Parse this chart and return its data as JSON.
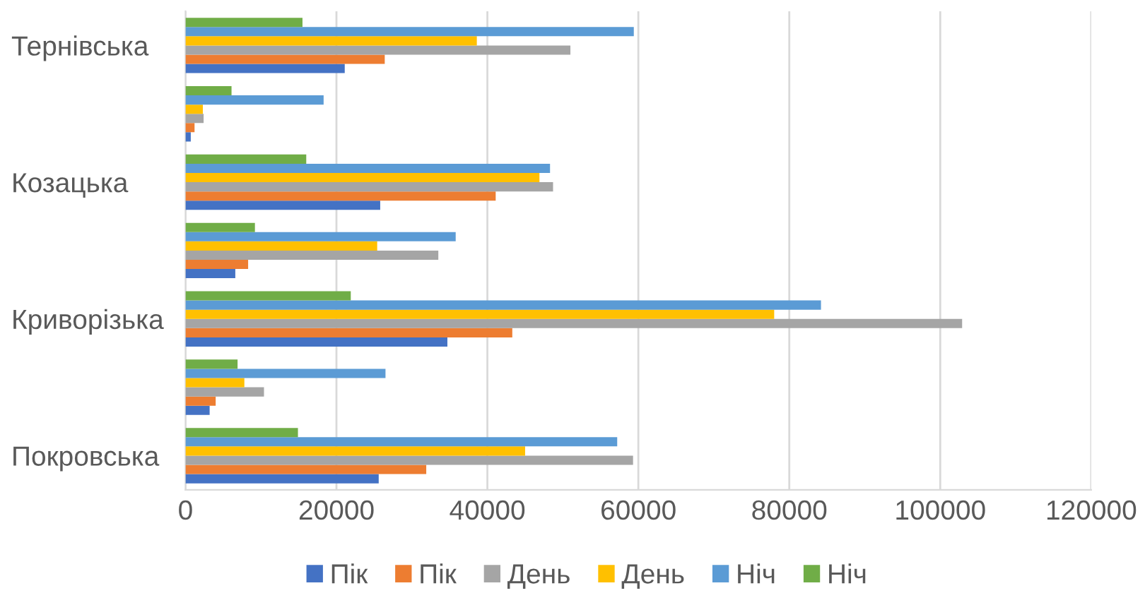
{
  "chart_data": {
    "type": "bar",
    "orientation": "horizontal",
    "categories": [
      "Тернівська",
      null,
      "Козацька",
      null,
      "Криворізька",
      null,
      "Покровська"
    ],
    "series": [
      {
        "name": "Пік",
        "color": "#4472c4",
        "values": [
          21100,
          700,
          25800,
          6600,
          34700,
          3200,
          25600
        ]
      },
      {
        "name": "Пік",
        "color": "#ed7d31",
        "values": [
          26400,
          1200,
          41100,
          8300,
          43300,
          4000,
          31900
        ]
      },
      {
        "name": "День",
        "color": "#a5a5a5",
        "values": [
          51000,
          2400,
          48700,
          33500,
          102900,
          10400,
          59300
        ]
      },
      {
        "name": "День",
        "color": "#ffc000",
        "values": [
          38600,
          2300,
          46900,
          25400,
          78000,
          7800,
          45000
        ]
      },
      {
        "name": "Ніч",
        "color": "#5b9bd5",
        "values": [
          59400,
          18300,
          48300,
          35800,
          84200,
          26500,
          57200
        ]
      },
      {
        "name": "Ніч",
        "color": "#70ad47",
        "values": [
          15500,
          6100,
          16000,
          9200,
          21900,
          6900,
          14900
        ]
      }
    ],
    "xlim": [
      0,
      120000
    ],
    "xticks": [
      0,
      20000,
      40000,
      60000,
      80000,
      100000,
      120000
    ],
    "grid": "x",
    "legend": "bottom"
  }
}
